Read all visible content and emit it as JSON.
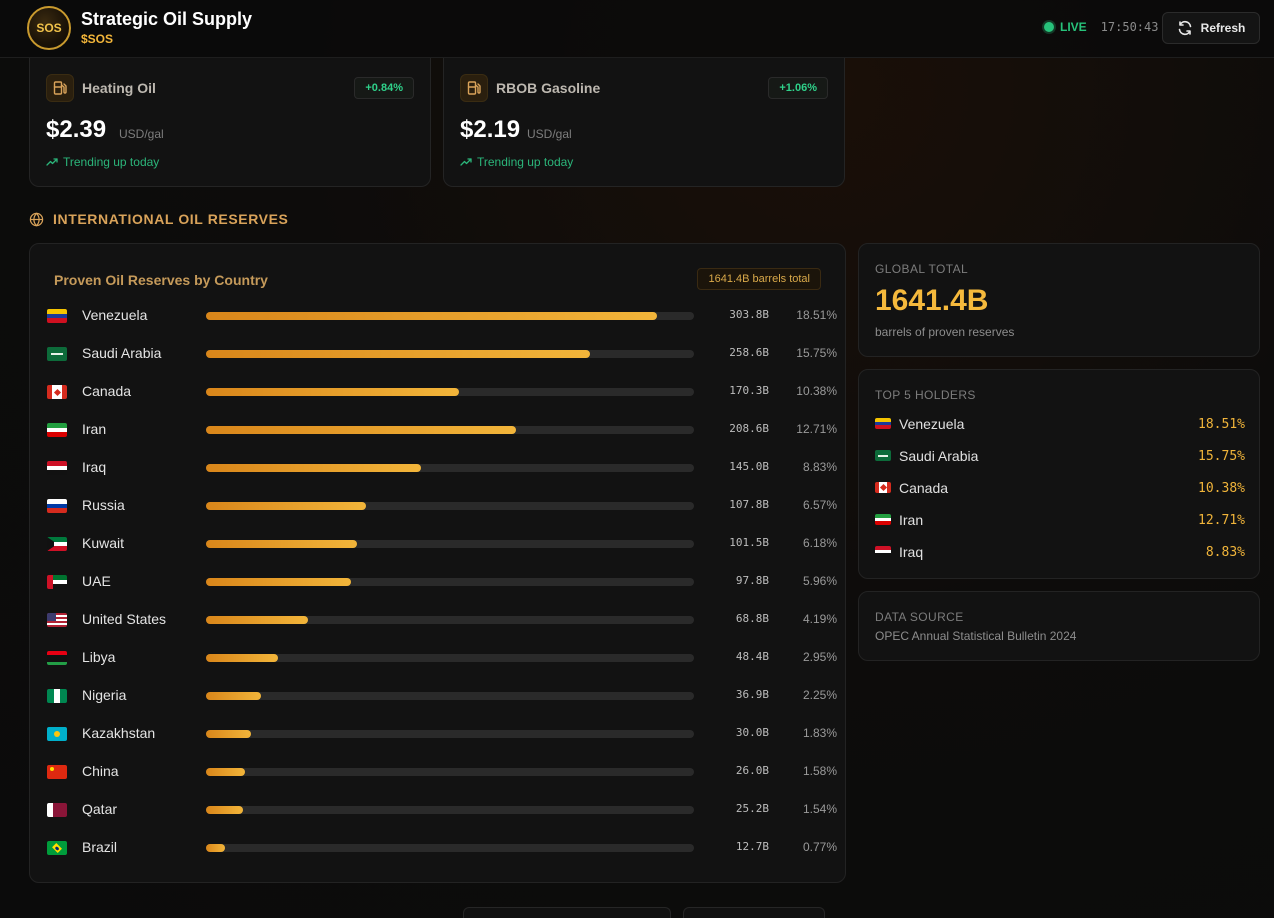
{
  "app": {
    "title": "Strategic Oil Supply",
    "ticker": "$SOS",
    "logo_text": "SOS",
    "live_label": "LIVE",
    "time": "17:50:43",
    "refresh_label": "Refresh"
  },
  "price_cards": [
    {
      "name": "Heating Oil",
      "change": "+0.84%",
      "price": "$2.39",
      "unit": "USD/gal",
      "trend": "Trending up today"
    },
    {
      "name": "RBOB Gasoline",
      "change": "+1.06%",
      "price": "$2.19",
      "unit": "USD/gal",
      "trend": "Trending up today"
    }
  ],
  "section": {
    "title": "INTERNATIONAL OIL RESERVES"
  },
  "reserves": {
    "title": "Proven Oil Reserves by Country",
    "total_badge": "1641.4B barrels total",
    "countries": [
      {
        "name": "Venezuela",
        "value": "303.8B",
        "pct": "18.51%",
        "flag": "venezuela"
      },
      {
        "name": "Saudi Arabia",
        "value": "258.6B",
        "pct": "15.75%",
        "flag": "saudi-arabia"
      },
      {
        "name": "Canada",
        "value": "170.3B",
        "pct": "10.38%",
        "flag": "canada"
      },
      {
        "name": "Iran",
        "value": "208.6B",
        "pct": "12.71%",
        "flag": "iran"
      },
      {
        "name": "Iraq",
        "value": "145.0B",
        "pct": "8.83%",
        "flag": "iraq"
      },
      {
        "name": "Russia",
        "value": "107.8B",
        "pct": "6.57%",
        "flag": "russia"
      },
      {
        "name": "Kuwait",
        "value": "101.5B",
        "pct": "6.18%",
        "flag": "kuwait"
      },
      {
        "name": "UAE",
        "value": "97.8B",
        "pct": "5.96%",
        "flag": "uae"
      },
      {
        "name": "United States",
        "value": "68.8B",
        "pct": "4.19%",
        "flag": "united-states"
      },
      {
        "name": "Libya",
        "value": "48.4B",
        "pct": "2.95%",
        "flag": "libya"
      },
      {
        "name": "Nigeria",
        "value": "36.9B",
        "pct": "2.25%",
        "flag": "nigeria"
      },
      {
        "name": "Kazakhstan",
        "value": "30.0B",
        "pct": "1.83%",
        "flag": "kazakhstan"
      },
      {
        "name": "China",
        "value": "26.0B",
        "pct": "1.58%",
        "flag": "china"
      },
      {
        "name": "Qatar",
        "value": "25.2B",
        "pct": "1.54%",
        "flag": "qatar"
      },
      {
        "name": "Brazil",
        "value": "12.7B",
        "pct": "0.77%",
        "flag": "brazil"
      }
    ]
  },
  "global_total": {
    "label": "GLOBAL TOTAL",
    "value": "1641.4B",
    "sub": "barrels of proven reserves"
  },
  "top_holders": {
    "label": "TOP 5 HOLDERS",
    "items": [
      {
        "name": "Venezuela",
        "pct": "18.51%",
        "flag": "venezuela"
      },
      {
        "name": "Saudi Arabia",
        "pct": "15.75%",
        "flag": "saudi-arabia"
      },
      {
        "name": "Canada",
        "pct": "10.38%",
        "flag": "canada"
      },
      {
        "name": "Iran",
        "pct": "12.71%",
        "flag": "iran"
      },
      {
        "name": "Iraq",
        "pct": "8.83%",
        "flag": "iraq"
      }
    ]
  },
  "data_source": {
    "label": "DATA SOURCE",
    "text": "OPEC Annual Statistical Bulletin 2024"
  },
  "colors": {
    "accent": "#f2b53a",
    "positive": "#2fd18a",
    "bar_start": "#d9861a"
  },
  "icons": [
    "fuel-pump-icon",
    "trend-up-icon",
    "globe-icon",
    "refresh-icon"
  ]
}
